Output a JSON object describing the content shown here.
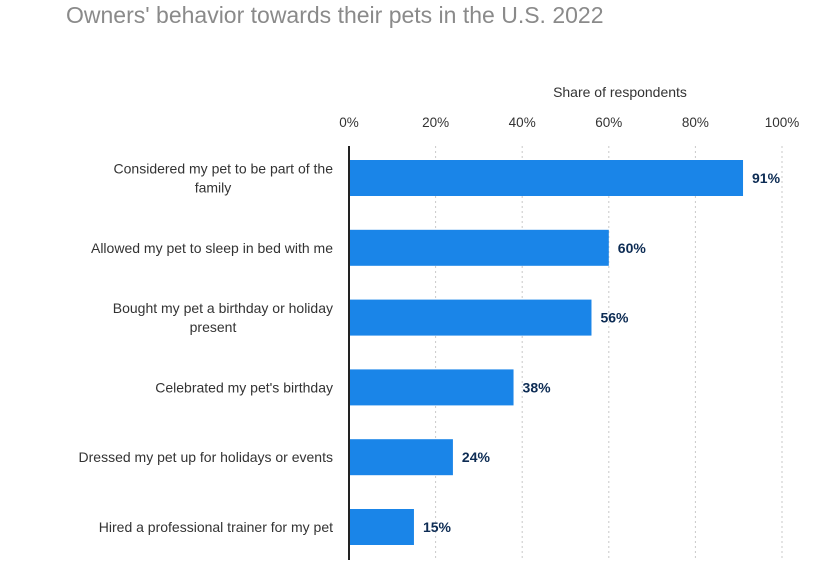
{
  "chart_data": {
    "type": "bar",
    "orientation": "horizontal",
    "title": "Owners' behavior towards their pets in the U.S. 2022",
    "xlabel": "Share of respondents",
    "x_tick_labels": [
      "0%",
      "20%",
      "40%",
      "60%",
      "80%",
      "100%"
    ],
    "xlim": [
      0,
      100
    ],
    "grid": true,
    "categories": [
      [
        "Considered my pet to be part of the",
        "family"
      ],
      [
        "Allowed my pet to sleep in bed with me"
      ],
      [
        "Bought my pet a birthday or holiday",
        "present"
      ],
      [
        "Celebrated my pet's birthday"
      ],
      [
        "Dressed my pet up for holidays or events"
      ],
      [
        "Hired a professional trainer for my pet"
      ]
    ],
    "values": [
      91,
      60,
      56,
      38,
      24,
      15
    ],
    "value_labels": [
      "91%",
      "60%",
      "56%",
      "38%",
      "24%",
      "15%"
    ],
    "bar_color": "#1a85e8",
    "value_label_color": "#0d2c54"
  }
}
